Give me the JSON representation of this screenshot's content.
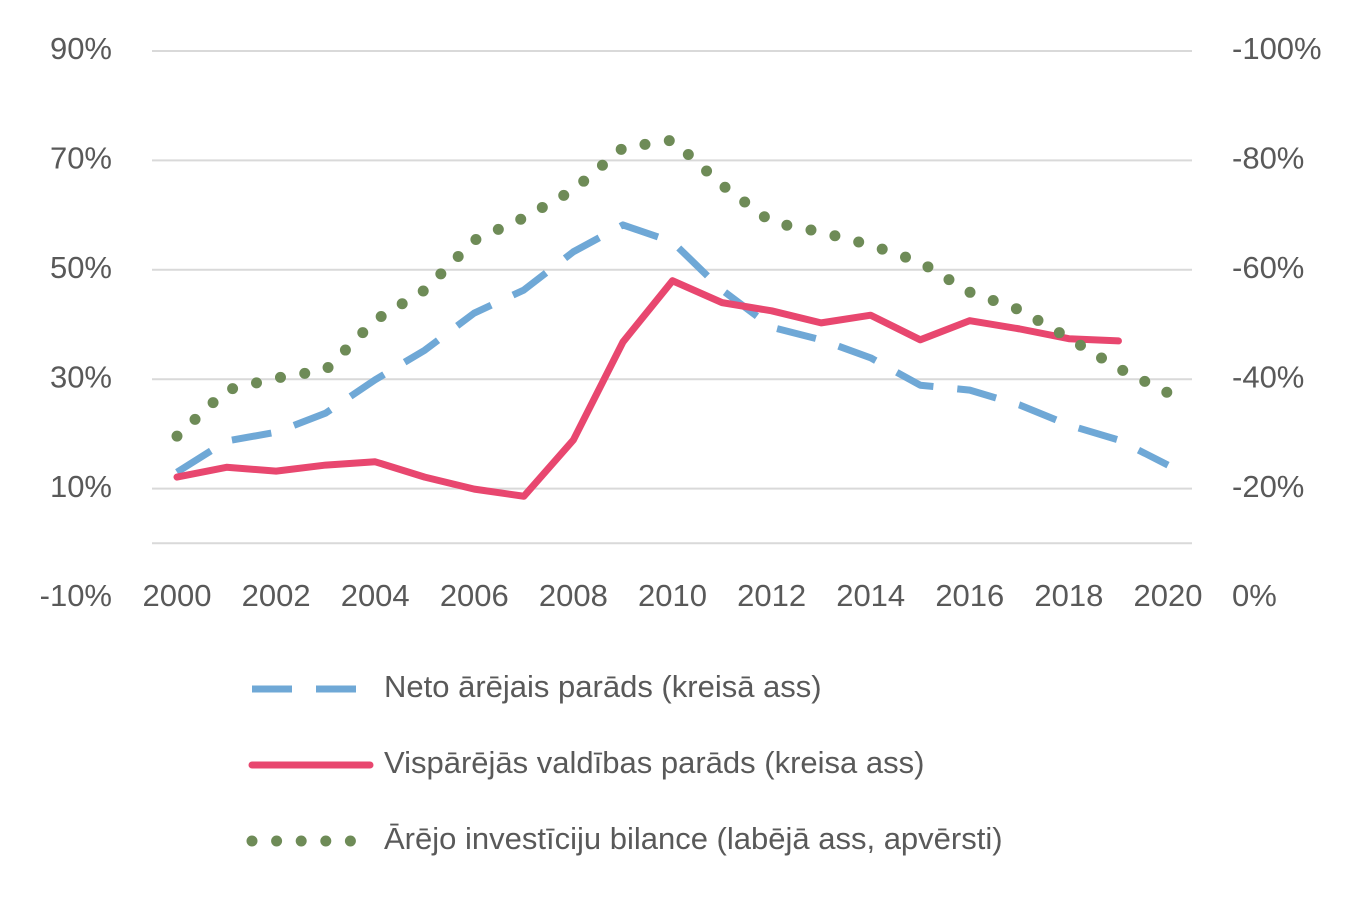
{
  "chart_data": {
    "type": "line",
    "x": [
      2000,
      2001,
      2002,
      2003,
      2004,
      2005,
      2006,
      2007,
      2008,
      2009,
      2010,
      2011,
      2012,
      2013,
      2014,
      2015,
      2016,
      2017,
      2018,
      2019,
      2020
    ],
    "xlim": [
      2000,
      2020
    ],
    "xticks": [
      2000,
      2002,
      2004,
      2006,
      2008,
      2010,
      2012,
      2014,
      2016,
      2018,
      2020
    ],
    "ylim": [
      -10,
      90
    ],
    "yticks": [
      {
        "value": -10,
        "label": "-10%"
      },
      {
        "value": 10,
        "label": "10%"
      },
      {
        "value": 30,
        "label": "30%"
      },
      {
        "value": 50,
        "label": "50%"
      },
      {
        "value": 70,
        "label": "70%"
      },
      {
        "value": 90,
        "label": "90%"
      }
    ],
    "y2lim": [
      0,
      -100
    ],
    "y2ticks": [
      {
        "value": 0,
        "label": "0%"
      },
      {
        "value": -20,
        "label": "-20%"
      },
      {
        "value": -40,
        "label": "-40%"
      },
      {
        "value": -60,
        "label": "-60%"
      },
      {
        "value": -80,
        "label": "-80%"
      },
      {
        "value": -100,
        "label": "-100%"
      }
    ],
    "grid": true,
    "legend": "bottom",
    "series": [
      {
        "name": "Neto ārējais parāds (kreisā ass)",
        "color": "#6fa8d6",
        "style": "dashed",
        "values": [
          13.0,
          18.7,
          20.3,
          23.8,
          29.9,
          35.3,
          42.1,
          46.3,
          53.3,
          58.2,
          55.1,
          46.3,
          39.5,
          37.2,
          33.9,
          28.9,
          28.0,
          25.3,
          21.6,
          18.9,
          14.3
        ]
      },
      {
        "name": "Vispārējās valdības parāds (kreisa ass)",
        "color": "#e8476f",
        "style": "solid",
        "values": [
          12.1,
          13.9,
          13.2,
          14.3,
          14.9,
          12.1,
          9.9,
          8.6,
          18.9,
          36.8,
          48.0,
          44.0,
          42.5,
          40.3,
          41.7,
          37.2,
          40.7,
          39.2,
          37.4,
          37.0,
          null
        ]
      },
      {
        "name": "Ārējo investīciju bilance (labējā ass, apvērsti)",
        "color": "#6e8b57",
        "style": "dotted",
        "axis": "y2",
        "values": [
          -29.6,
          -38.0,
          -40.2,
          -41.7,
          -50.8,
          -56.3,
          -65.4,
          -69.5,
          -74.6,
          -82.3,
          -83.7,
          -75.5,
          -68.7,
          -66.9,
          -64.5,
          -61.4,
          -55.9,
          -52.7,
          -47.5,
          -42.0,
          -37.5
        ]
      }
    ]
  }
}
